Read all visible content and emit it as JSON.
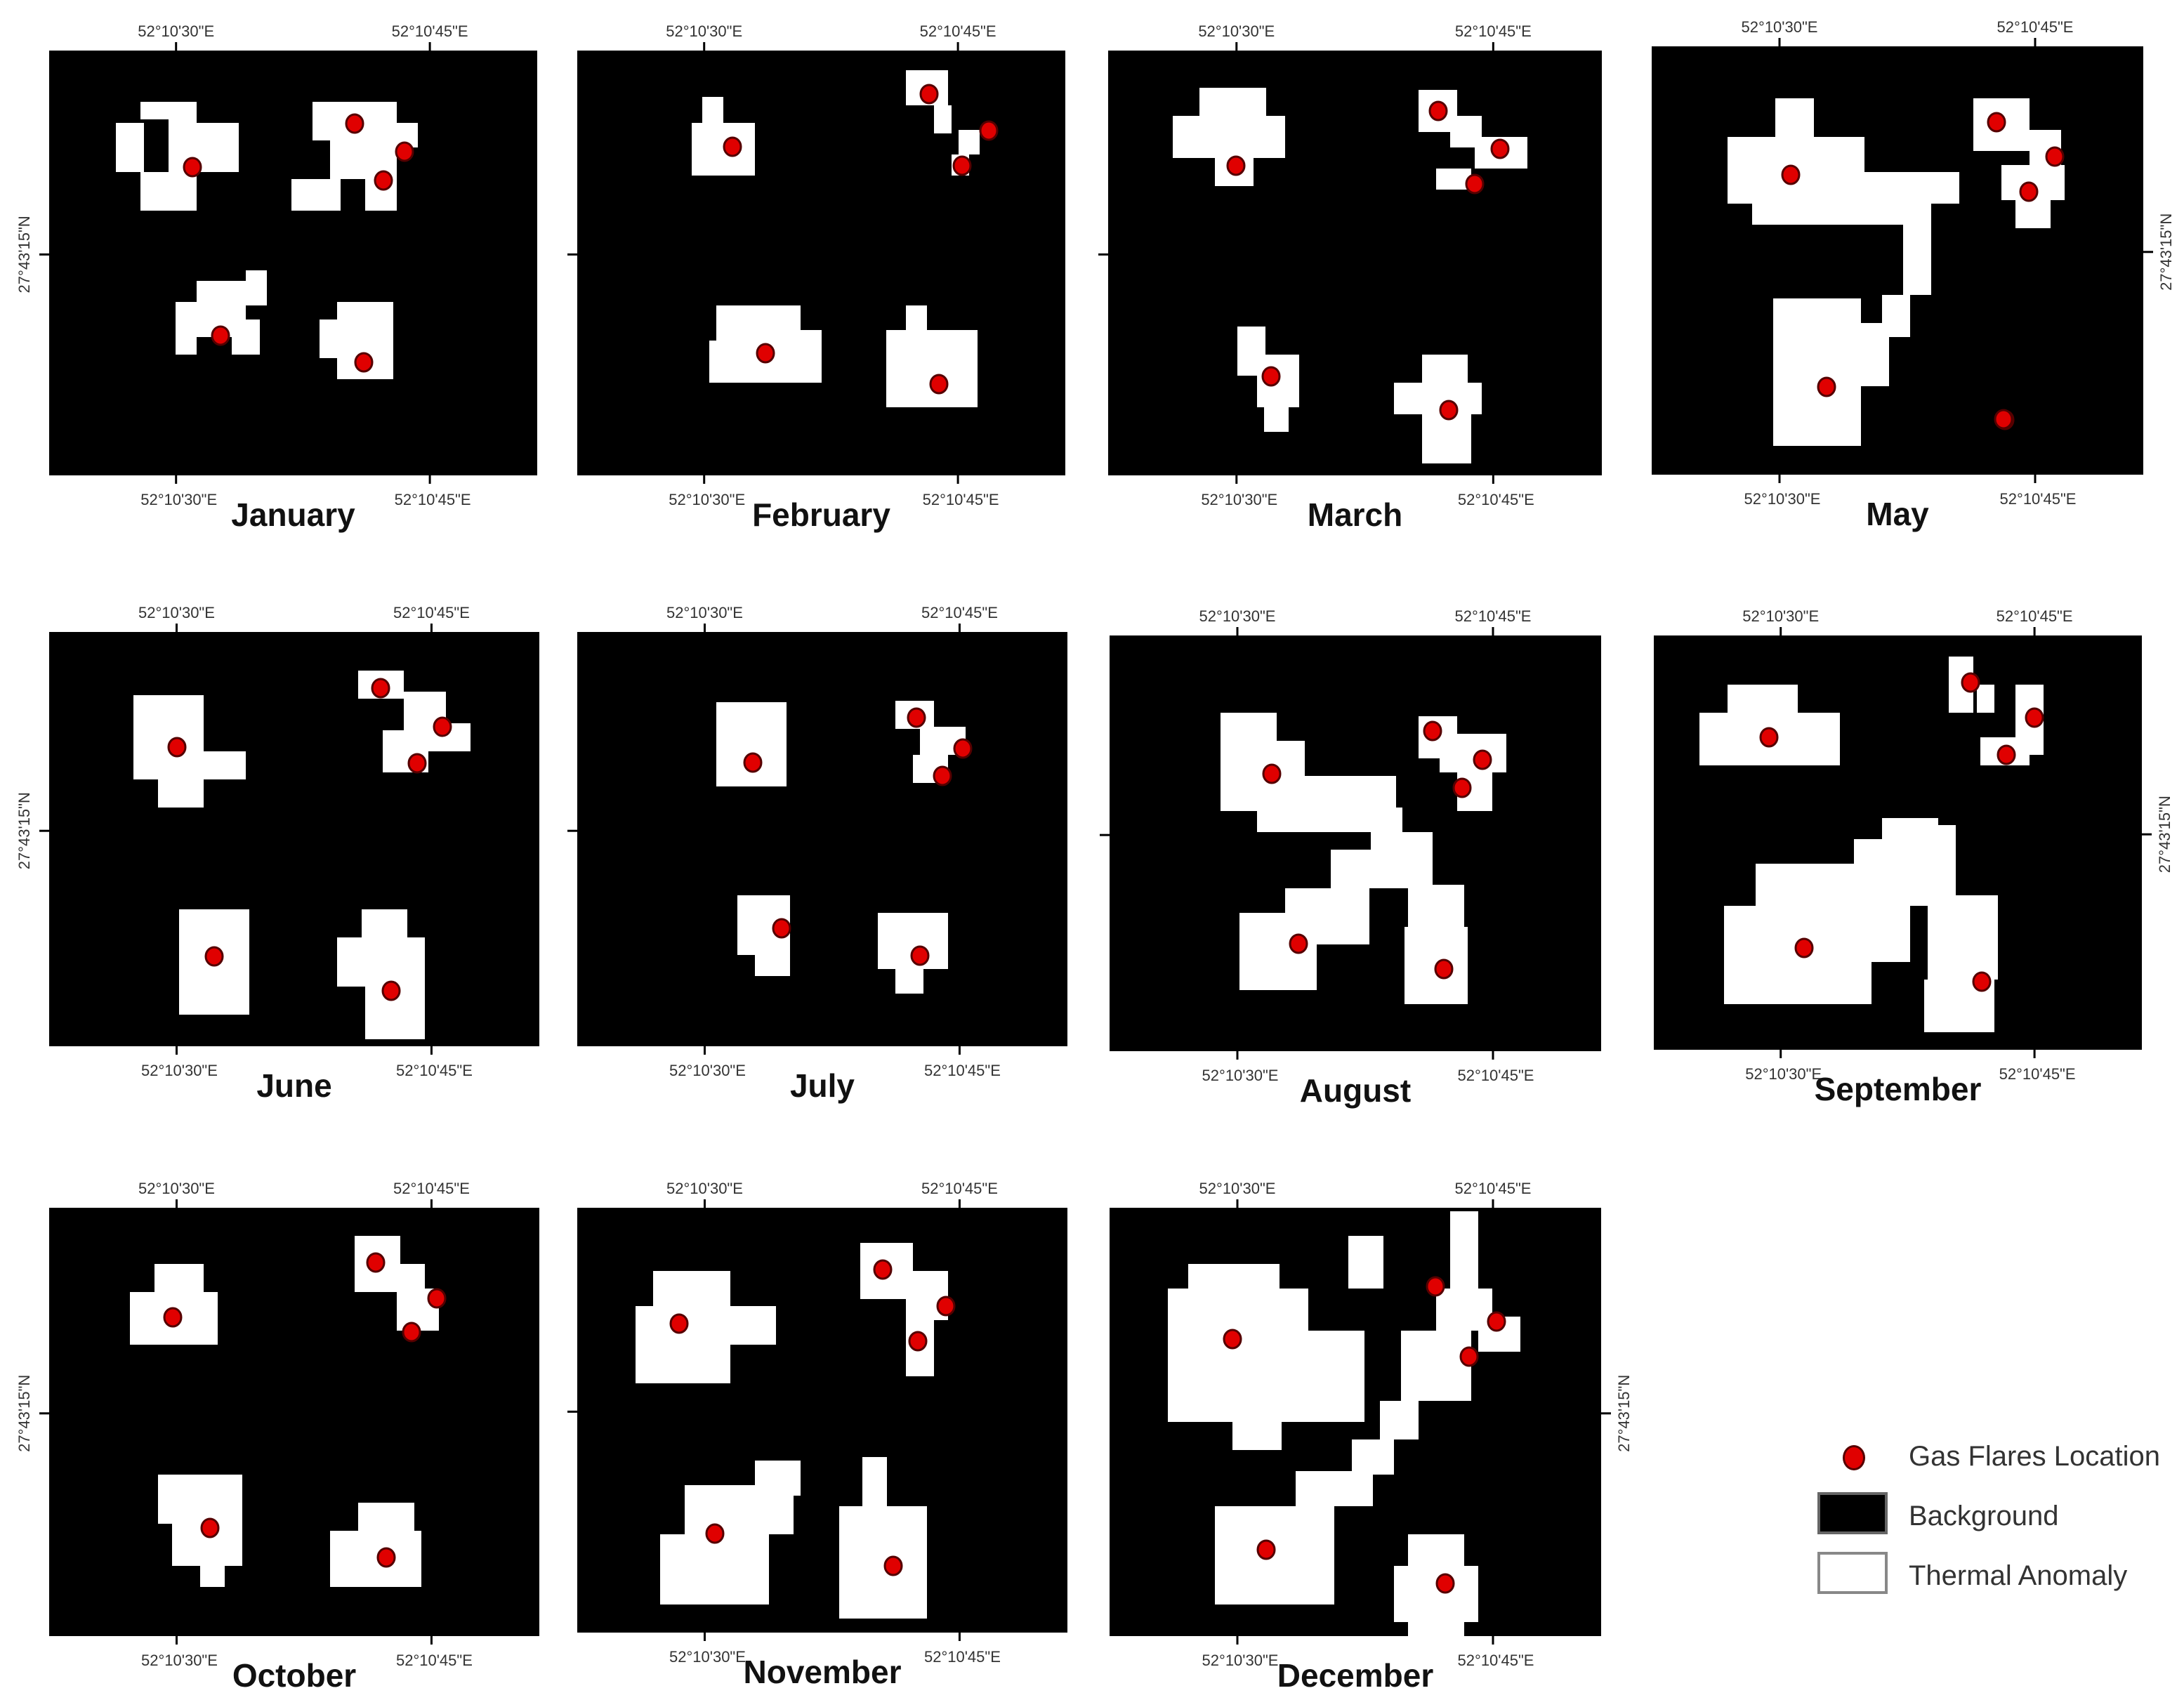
{
  "panels": [
    {
      "month": "January",
      "top_lon_left": "52°10'30\"E",
      "top_lon_right": "52°10'45\"E",
      "bottom_lon_left": "52°10'30\"E",
      "bottom_lon_right": "52°10'45\"E",
      "lat_label": "27°43'15\"N",
      "lat_side": "left"
    },
    {
      "month": "February",
      "top_lon_left": "52°10'30\"E",
      "top_lon_right": "52°10'45\"E",
      "bottom_lon_left": "52°10'30\"E",
      "bottom_lon_right": "52°10'45\"E",
      "lat_label": "",
      "lat_side": "left"
    },
    {
      "month": "March",
      "top_lon_left": "52°10'30\"E",
      "top_lon_right": "52°10'45\"E",
      "bottom_lon_left": "52°10'30\"E",
      "bottom_lon_right": "52°10'45\"E",
      "lat_label": "",
      "lat_side": "left"
    },
    {
      "month": "May",
      "top_lon_left": "52°10'30\"E",
      "top_lon_right": "52°10'45\"E",
      "bottom_lon_left": "52°10'30\"E",
      "bottom_lon_right": "52°10'45\"E",
      "lat_label": "27°43'15\"N",
      "lat_side": "right"
    },
    {
      "month": "June",
      "top_lon_left": "52°10'30\"E",
      "top_lon_right": "52°10'45\"E",
      "bottom_lon_left": "52°10'30\"E",
      "bottom_lon_right": "52°10'45\"E",
      "lat_label": "27°43'15\"N",
      "lat_side": "left"
    },
    {
      "month": "July",
      "top_lon_left": "52°10'30\"E",
      "top_lon_right": "52°10'45\"E",
      "bottom_lon_left": "52°10'30\"E",
      "bottom_lon_right": "52°10'45\"E",
      "lat_label": "",
      "lat_side": "left"
    },
    {
      "month": "August",
      "top_lon_left": "52°10'30\"E",
      "top_lon_right": "52°10'45\"E",
      "bottom_lon_left": "52°10'30\"E",
      "bottom_lon_right": "52°10'45\"E",
      "lat_label": "",
      "lat_side": "left"
    },
    {
      "month": "September",
      "top_lon_left": "52°10'30\"E",
      "top_lon_right": "52°10'45\"E",
      "bottom_lon_left": "52°10'30\"E",
      "bottom_lon_right": "52°10'45\"E",
      "lat_label": "27°43'15\"N",
      "lat_side": "right"
    },
    {
      "month": "October",
      "top_lon_left": "52°10'30\"E",
      "top_lon_right": "52°10'45\"E",
      "bottom_lon_left": "52°10'30\"E",
      "bottom_lon_right": "52°10'45\"E",
      "lat_label": "27°43'15\"N",
      "lat_side": "left"
    },
    {
      "month": "November",
      "top_lon_left": "52°10'30\"E",
      "top_lon_right": "52°10'45\"E",
      "bottom_lon_left": "52°10'30\"E",
      "bottom_lon_right": "52°10'45\"E",
      "lat_label": "",
      "lat_side": "left"
    },
    {
      "month": "December",
      "top_lon_left": "52°10'30\"E",
      "top_lon_right": "52°10'45\"E",
      "bottom_lon_left": "52°10'30\"E",
      "bottom_lon_right": "52°10'45\"E",
      "lat_label": "27°43'15\"N",
      "lat_side": "right"
    }
  ],
  "legend": {
    "flares_label": "Gas Flares Location",
    "background_label": "Background",
    "anomaly_label": "Thermal Anomaly"
  },
  "colors": {
    "background": "#000000",
    "anomaly": "#ffffff",
    "flare": "#e00000",
    "flare_outline": "#550000"
  },
  "icons": {
    "flare_marker": "red-dot-icon"
  }
}
